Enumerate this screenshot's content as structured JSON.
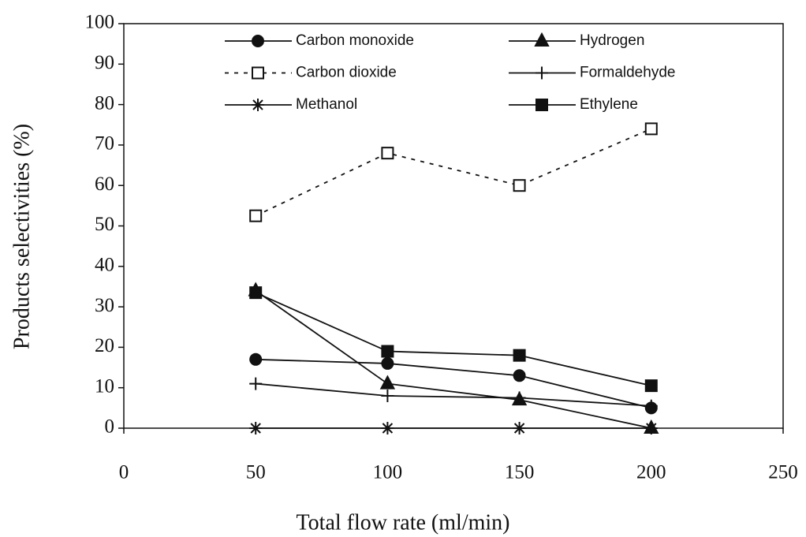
{
  "chart_data": {
    "type": "line",
    "x_label": "Total flow rate (ml/min)",
    "y_label": "Products selectivities (%)",
    "x": [
      50,
      100,
      150,
      200
    ],
    "xlim": [
      0,
      250
    ],
    "xticks": [
      0,
      50,
      100,
      150,
      200,
      250
    ],
    "ylim": [
      0,
      100
    ],
    "yticks": [
      0,
      10,
      20,
      30,
      40,
      50,
      60,
      70,
      80,
      90,
      100
    ],
    "legend": "top",
    "series": [
      {
        "name": "Carbon monoxide",
        "color": "#111111",
        "marker": "circle",
        "dashed": false,
        "values": [
          17,
          16,
          13,
          5
        ]
      },
      {
        "name": "Hydrogen",
        "color": "#111111",
        "marker": "triangle",
        "dashed": false,
        "values": [
          34,
          11,
          7,
          0
        ]
      },
      {
        "name": "Carbon dioxide",
        "color": "#111111",
        "marker": "open-square",
        "dashed": true,
        "values": [
          52.5,
          68,
          60,
          74
        ]
      },
      {
        "name": "Formaldehyde",
        "color": "#111111",
        "marker": "plus",
        "dashed": false,
        "values": [
          11,
          8,
          7.5,
          5.5
        ]
      },
      {
        "name": "Methanol",
        "color": "#111111",
        "marker": "asterisk",
        "dashed": false,
        "values": [
          0,
          0,
          0,
          0
        ]
      },
      {
        "name": "Ethylene",
        "color": "#111111",
        "marker": "square",
        "dashed": false,
        "values": [
          33.5,
          19,
          18,
          10.5
        ]
      }
    ]
  }
}
